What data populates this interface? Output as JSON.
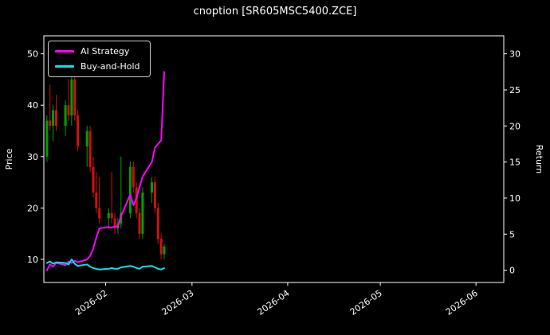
{
  "chart_data": {
    "type": "candlestick+line",
    "title": "cnoption [SR605MSC5400.ZCE]",
    "ylabel_left": "Price",
    "ylabel_right": "Return",
    "price_ylim": [
      5.5,
      53.5
    ],
    "return_ylim": [
      -1.7,
      32.5
    ],
    "x_domain": [
      "2026-01-12",
      "2026-06-10"
    ],
    "price_ticks": [
      10,
      20,
      30,
      40,
      50
    ],
    "return_ticks": [
      0,
      5,
      10,
      15,
      20,
      25,
      30
    ],
    "x_ticks": [
      {
        "date": "2026-02-01",
        "label": "2026-02"
      },
      {
        "date": "2026-03-01",
        "label": "2026-03"
      },
      {
        "date": "2026-04-01",
        "label": "2026-04"
      },
      {
        "date": "2026-05-01",
        "label": "2026-05"
      },
      {
        "date": "2026-06-01",
        "label": "2026-06"
      }
    ],
    "colors": {
      "background": "#000000",
      "text": "#ffffff",
      "axis": "#ffffff",
      "up": "#00a000",
      "down": "#d01010",
      "ai_strategy": "#ff00ff",
      "buy_and_hold": "#00e5ee"
    },
    "candles": [
      [
        "2026-01-13",
        30,
        38,
        29,
        37
      ],
      [
        "2026-01-14",
        37,
        44,
        35,
        36
      ],
      [
        "2026-01-15",
        36,
        40,
        33,
        39
      ],
      [
        "2026-01-16",
        39,
        42,
        35,
        36
      ],
      [
        "2026-01-19",
        36,
        41,
        34,
        40
      ],
      [
        "2026-01-20",
        40,
        45,
        37,
        38
      ],
      [
        "2026-01-21",
        38,
        48,
        36,
        45
      ],
      [
        "2026-01-22",
        45,
        46,
        37,
        38
      ],
      [
        "2026-01-23",
        38,
        39,
        31,
        32
      ],
      [
        "2026-01-26",
        32,
        36,
        28,
        35
      ],
      [
        "2026-01-27",
        35,
        36,
        27,
        28
      ],
      [
        "2026-01-28",
        28,
        30,
        22,
        23
      ],
      [
        "2026-01-29",
        23,
        27,
        19,
        20
      ],
      [
        "2026-01-30",
        20,
        26,
        17,
        18
      ],
      [
        "2026-02-02",
        18,
        20,
        16,
        19
      ],
      [
        "2026-02-03",
        19,
        27,
        17,
        18
      ],
      [
        "2026-02-04",
        18,
        19,
        15,
        16
      ],
      [
        "2026-02-05",
        16,
        18,
        15,
        17
      ],
      [
        "2026-02-06",
        17,
        30,
        16,
        19
      ],
      [
        "2026-02-09",
        19,
        29,
        18,
        28
      ],
      [
        "2026-02-10",
        28,
        29,
        23,
        24
      ],
      [
        "2026-02-11",
        24,
        25,
        18,
        19
      ],
      [
        "2026-02-12",
        19,
        20,
        14,
        15
      ],
      [
        "2026-02-13",
        15,
        24,
        14,
        23
      ],
      [
        "2026-02-16",
        23,
        26,
        21,
        25
      ],
      [
        "2026-02-17",
        25,
        26,
        19,
        20
      ],
      [
        "2026-02-18",
        20,
        21,
        13,
        14
      ],
      [
        "2026-02-19",
        14,
        15,
        10,
        11
      ],
      [
        "2026-02-20",
        11,
        13,
        10,
        12.5
      ]
    ],
    "series": [
      {
        "name": "AI Strategy",
        "color": "#ff00ff",
        "axis": "return",
        "points": [
          [
            "2026-01-13",
            0
          ],
          [
            "2026-01-14",
            0.8
          ],
          [
            "2026-01-15",
            0.5
          ],
          [
            "2026-01-16",
            1.0
          ],
          [
            "2026-01-19",
            0.7
          ],
          [
            "2026-01-20",
            1.2
          ],
          [
            "2026-01-21",
            1.0
          ],
          [
            "2026-01-22",
            1.3
          ],
          [
            "2026-01-23",
            1.1
          ],
          [
            "2026-01-26",
            1.5
          ],
          [
            "2026-01-27",
            2.0
          ],
          [
            "2026-01-28",
            3.0
          ],
          [
            "2026-01-29",
            4.5
          ],
          [
            "2026-01-30",
            5.8
          ],
          [
            "2026-02-02",
            6.0
          ],
          [
            "2026-02-03",
            5.9
          ],
          [
            "2026-02-04",
            6.1
          ],
          [
            "2026-02-05",
            6.0
          ],
          [
            "2026-02-06",
            7.5
          ],
          [
            "2026-02-09",
            10.5
          ],
          [
            "2026-02-10",
            9.0
          ],
          [
            "2026-02-11",
            10.0
          ],
          [
            "2026-02-12",
            11.5
          ],
          [
            "2026-02-13",
            13.0
          ],
          [
            "2026-02-16",
            15.0
          ],
          [
            "2026-02-17",
            17.0
          ],
          [
            "2026-02-18",
            17.5
          ],
          [
            "2026-02-19",
            18.0
          ],
          [
            "2026-02-20",
            27.5
          ]
        ]
      },
      {
        "name": "Buy-and-Hold",
        "color": "#00e5ee",
        "axis": "return",
        "points": [
          [
            "2026-01-13",
            1.0
          ],
          [
            "2026-01-14",
            1.2
          ],
          [
            "2026-01-15",
            0.9
          ],
          [
            "2026-01-16",
            1.1
          ],
          [
            "2026-01-19",
            1.0
          ],
          [
            "2026-01-20",
            0.8
          ],
          [
            "2026-01-21",
            1.5
          ],
          [
            "2026-01-22",
            0.9
          ],
          [
            "2026-01-23",
            0.6
          ],
          [
            "2026-01-26",
            0.8
          ],
          [
            "2026-01-27",
            0.5
          ],
          [
            "2026-01-28",
            0.3
          ],
          [
            "2026-01-29",
            0.2
          ],
          [
            "2026-01-30",
            0.1
          ],
          [
            "2026-02-02",
            0.2
          ],
          [
            "2026-02-03",
            0.3
          ],
          [
            "2026-02-04",
            0.2
          ],
          [
            "2026-02-05",
            0.2
          ],
          [
            "2026-02-06",
            0.4
          ],
          [
            "2026-02-09",
            0.6
          ],
          [
            "2026-02-10",
            0.5
          ],
          [
            "2026-02-11",
            0.3
          ],
          [
            "2026-02-12",
            0.2
          ],
          [
            "2026-02-13",
            0.5
          ],
          [
            "2026-02-16",
            0.6
          ],
          [
            "2026-02-17",
            0.4
          ],
          [
            "2026-02-18",
            0.2
          ],
          [
            "2026-02-19",
            0.1
          ],
          [
            "2026-02-20",
            0.3
          ]
        ]
      }
    ]
  }
}
